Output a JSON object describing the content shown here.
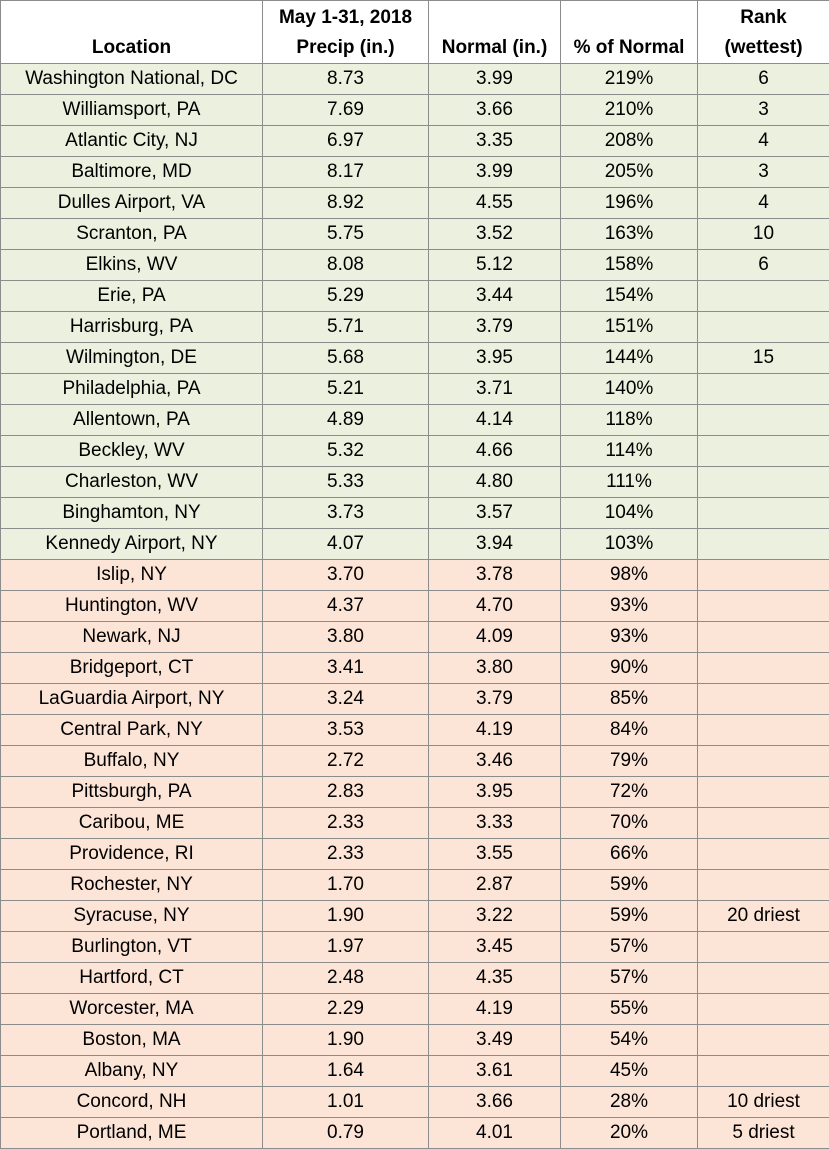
{
  "table": {
    "header": [
      "Location",
      "May 1-31, 2018\nPrecip (in.)",
      "Normal (in.)",
      "% of Normal",
      "Rank\n(wettest)"
    ],
    "rows": [
      [
        "Washington National, DC",
        "8.73",
        "3.99",
        "219%",
        "6"
      ],
      [
        "Williamsport, PA",
        "7.69",
        "3.66",
        "210%",
        "3"
      ],
      [
        "Atlantic City, NJ",
        "6.97",
        "3.35",
        "208%",
        "4"
      ],
      [
        "Baltimore, MD",
        "8.17",
        "3.99",
        "205%",
        "3"
      ],
      [
        "Dulles Airport, VA",
        "8.92",
        "4.55",
        "196%",
        "4"
      ],
      [
        "Scranton, PA",
        "5.75",
        "3.52",
        "163%",
        "10"
      ],
      [
        "Elkins, WV",
        "8.08",
        "5.12",
        "158%",
        "6"
      ],
      [
        "Erie, PA",
        "5.29",
        "3.44",
        "154%"
      ],
      [
        "Harrisburg, PA",
        "5.71",
        "3.79",
        "151%"
      ],
      [
        "Wilmington, DE",
        "5.68",
        "3.95",
        "144%",
        "15"
      ],
      [
        "Philadelphia, PA",
        "5.21",
        "3.71",
        "140%"
      ],
      [
        "Allentown, PA",
        "4.89",
        "4.14",
        "118%"
      ],
      [
        "Beckley, WV",
        "5.32",
        "4.66",
        "114%"
      ],
      [
        "Charleston, WV",
        "5.33",
        "4.80",
        "111%"
      ],
      [
        "Binghamton, NY",
        "3.73",
        "3.57",
        "104%"
      ],
      [
        "Kennedy Airport, NY",
        "4.07",
        "3.94",
        "103%"
      ],
      [
        "Islip, NY",
        "3.70",
        "3.78",
        "98%"
      ],
      [
        "Huntington, WV",
        "4.37",
        "4.70",
        "93%"
      ],
      [
        "Newark, NJ",
        "3.80",
        "4.09",
        "93%"
      ],
      [
        "Bridgeport, CT",
        "3.41",
        "3.80",
        "90%"
      ],
      [
        "LaGuardia Airport, NY",
        "3.24",
        "3.79",
        "85%"
      ],
      [
        "Central Park, NY",
        "3.53",
        "4.19",
        "84%"
      ],
      [
        "Buffalo, NY",
        "2.72",
        "3.46",
        "79%"
      ],
      [
        "Pittsburgh, PA",
        "2.83",
        "3.95",
        "72%"
      ],
      [
        "Caribou, ME",
        "2.33",
        "3.33",
        "70%"
      ],
      [
        "Providence, RI",
        "2.33",
        "3.55",
        "66%"
      ],
      [
        "Rochester, NY",
        "1.70",
        "2.87",
        "59%"
      ],
      [
        "Syracuse, NY",
        "1.90",
        "3.22",
        "59%",
        "20 driest"
      ],
      [
        "Burlington, VT",
        "1.97",
        "3.45",
        "57%"
      ],
      [
        "Hartford, CT",
        "2.48",
        "4.35",
        "57%"
      ],
      [
        "Worcester, MA",
        "2.29",
        "4.19",
        "55%"
      ],
      [
        "Boston, MA",
        "1.90",
        "3.49",
        "54%"
      ],
      [
        "Albany, NY",
        "1.64",
        "3.61",
        "45%"
      ],
      [
        "Concord, NH",
        "1.01",
        "3.66",
        "28%",
        "10 driest"
      ],
      [
        "Portland, ME",
        "0.79",
        "4.01",
        "20%",
        "5 driest"
      ]
    ]
  }
}
